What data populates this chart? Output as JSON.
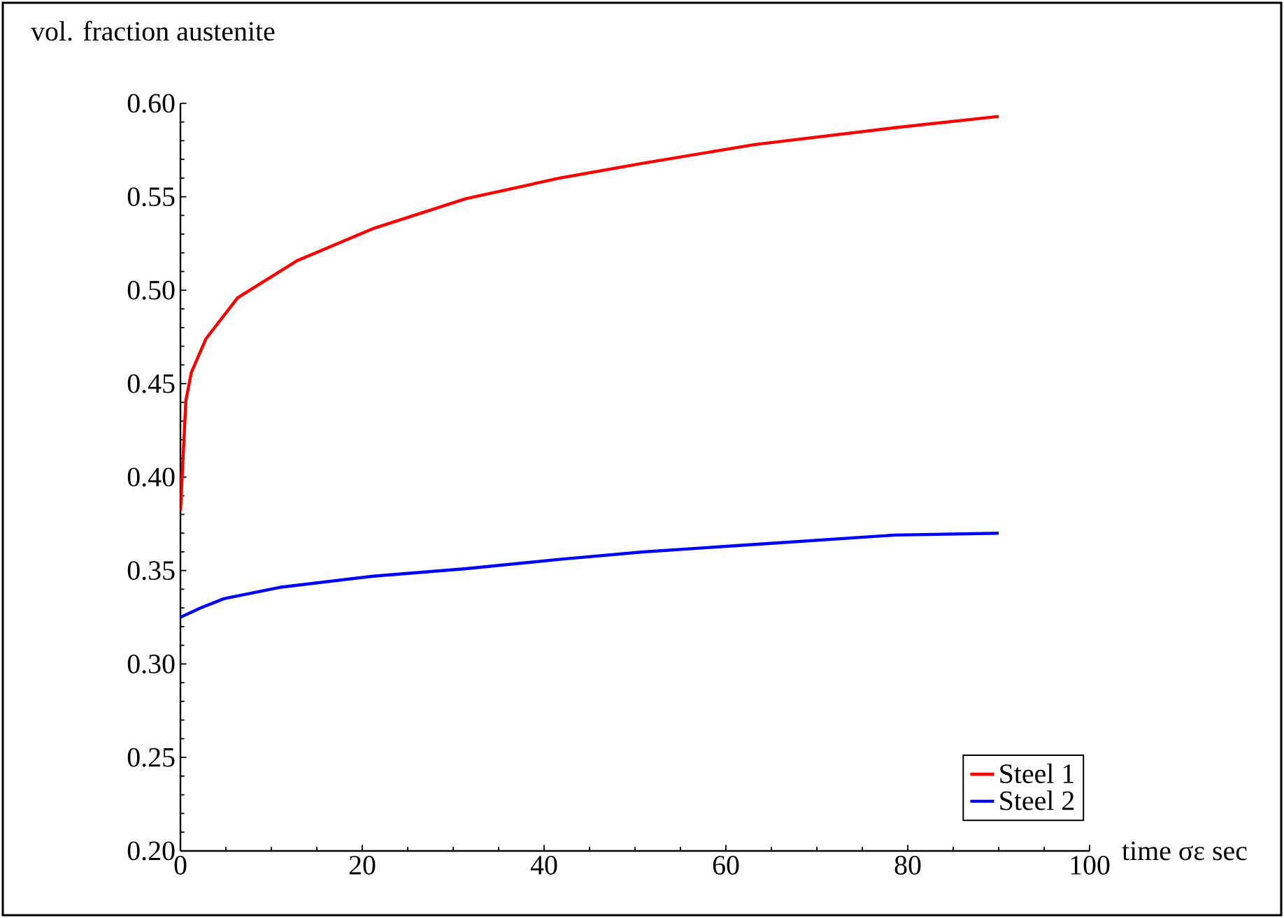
{
  "chart_data": {
    "type": "line",
    "xlabel": "time σε sec",
    "ylabel": "vol. fraction austenite",
    "xlim": [
      0,
      100
    ],
    "ylim": [
      0.2,
      0.6
    ],
    "xticks": [
      0,
      20,
      40,
      60,
      80,
      100
    ],
    "yticks": [
      {
        "value": 0.2,
        "label": "0.20"
      },
      {
        "value": 0.25,
        "label": "0.25"
      },
      {
        "value": 0.3,
        "label": "0.30"
      },
      {
        "value": 0.35,
        "label": "0.35"
      },
      {
        "value": 0.4,
        "label": "0.40"
      },
      {
        "value": 0.45,
        "label": "0.45"
      },
      {
        "value": 0.5,
        "label": "0.50"
      },
      {
        "value": 0.55,
        "label": "0.55"
      },
      {
        "value": 0.6,
        "label": "0.60"
      }
    ],
    "grid": false,
    "legend": "bottom right",
    "marker": "none",
    "line_style": "solid",
    "series": [
      {
        "name": "Steel 1",
        "color": "#ff0000",
        "x": [
          0,
          0.6,
          1.2,
          2.8,
          6.3,
          12.9,
          21.2,
          31.4,
          41.7,
          50.9,
          63.2,
          78.6,
          90
        ],
        "values": [
          0.382,
          0.441,
          0.456,
          0.474,
          0.496,
          0.516,
          0.533,
          0.549,
          0.56,
          0.568,
          0.578,
          0.587,
          0.593
        ]
      },
      {
        "name": "Steel 2",
        "color": "#0000ff",
        "x": [
          0,
          2.2,
          4.8,
          10.9,
          21.2,
          31.4,
          41.7,
          50.9,
          63.2,
          78.6,
          90
        ],
        "values": [
          0.325,
          0.33,
          0.335,
          0.341,
          0.347,
          0.351,
          0.356,
          0.36,
          0.364,
          0.369,
          0.37
        ]
      }
    ]
  }
}
